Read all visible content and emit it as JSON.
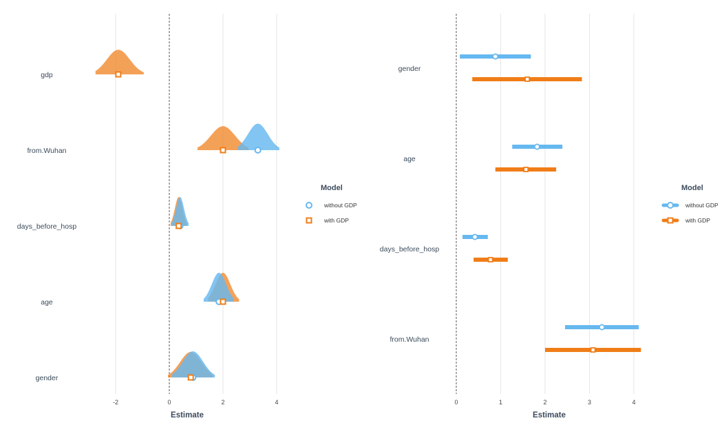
{
  "chart_data": [
    {
      "type": "density-ridge",
      "xlabel": "Estimate",
      "xticks": [
        -2,
        0,
        2,
        4
      ],
      "xlim": [
        -3.0,
        4.5
      ],
      "reference_line": 0,
      "categories": [
        "gdp",
        "from.Wuhan",
        "days_before_hosp",
        "age",
        "gender"
      ],
      "series": [
        {
          "name": "without GDP",
          "color": "#66b8f0",
          "marker": "circle",
          "points": [
            {
              "category": "from.Wuhan",
              "estimate": 3.3,
              "lo": 2.55,
              "hi": 4.1
            },
            {
              "category": "days_before_hosp",
              "estimate": 0.4,
              "lo": 0.1,
              "hi": 0.72
            },
            {
              "category": "age",
              "estimate": 1.85,
              "lo": 1.28,
              "hi": 2.4
            },
            {
              "category": "gender",
              "estimate": 0.88,
              "lo": 0.1,
              "hi": 1.7
            }
          ]
        },
        {
          "name": "with GDP",
          "color": "#f07d17",
          "marker": "square",
          "points": [
            {
              "category": "gdp",
              "estimate": -1.9,
              "lo": -2.75,
              "hi": -0.95
            },
            {
              "category": "from.Wuhan",
              "estimate": 2.0,
              "lo": 1.05,
              "hi": 2.95
            },
            {
              "category": "days_before_hosp",
              "estimate": 0.35,
              "lo": 0.05,
              "hi": 0.65
            },
            {
              "category": "age",
              "estimate": 2.0,
              "lo": 1.45,
              "hi": 2.6
            },
            {
              "category": "gender",
              "estimate": 0.8,
              "lo": -0.05,
              "hi": 1.62
            }
          ]
        }
      ],
      "legend": {
        "title": "Model",
        "position": "right"
      }
    },
    {
      "type": "dot-whisker",
      "xlabel": "Estimate",
      "xticks": [
        0,
        1,
        2,
        3,
        4
      ],
      "xlim": [
        -0.1,
        4.55
      ],
      "reference_line": 0,
      "categories": [
        "gender",
        "age",
        "days_before_hosp",
        "from.Wuhan"
      ],
      "series": [
        {
          "name": "without GDP",
          "color": "#66b8f0",
          "marker": "circle",
          "points": [
            {
              "category": "gender",
              "estimate": 0.88,
              "lo": 0.08,
              "hi": 1.68
            },
            {
              "category": "age",
              "estimate": 1.82,
              "lo": 1.26,
              "hi": 2.39
            },
            {
              "category": "days_before_hosp",
              "estimate": 0.42,
              "lo": 0.14,
              "hi": 0.71
            },
            {
              "category": "from.Wuhan",
              "estimate": 3.28,
              "lo": 2.45,
              "hi": 4.11
            }
          ]
        },
        {
          "name": "with GDP",
          "color": "#f07d17",
          "marker": "square",
          "points": [
            {
              "category": "gender",
              "estimate": 1.6,
              "lo": 0.36,
              "hi": 2.83
            },
            {
              "category": "age",
              "estimate": 1.57,
              "lo": 0.88,
              "hi": 2.25
            },
            {
              "category": "days_before_hosp",
              "estimate": 0.77,
              "lo": 0.39,
              "hi": 1.16
            },
            {
              "category": "from.Wuhan",
              "estimate": 3.08,
              "lo": 2.0,
              "hi": 4.16
            }
          ]
        }
      ],
      "legend": {
        "title": "Model",
        "position": "right"
      }
    }
  ]
}
